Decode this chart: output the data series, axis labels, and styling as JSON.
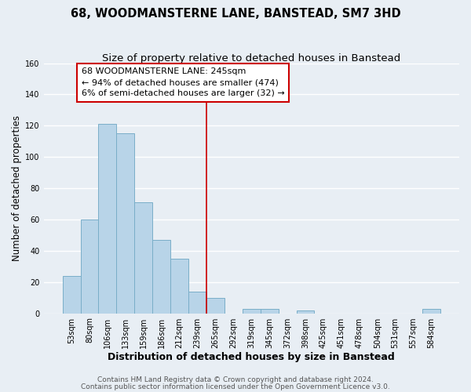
{
  "title": "68, WOODMANSTERNE LANE, BANSTEAD, SM7 3HD",
  "subtitle": "Size of property relative to detached houses in Banstead",
  "xlabel": "Distribution of detached houses by size in Banstead",
  "ylabel": "Number of detached properties",
  "bar_labels": [
    "53sqm",
    "80sqm",
    "106sqm",
    "133sqm",
    "159sqm",
    "186sqm",
    "212sqm",
    "239sqm",
    "265sqm",
    "292sqm",
    "319sqm",
    "345sqm",
    "372sqm",
    "398sqm",
    "425sqm",
    "451sqm",
    "478sqm",
    "504sqm",
    "531sqm",
    "557sqm",
    "584sqm"
  ],
  "bar_heights": [
    24,
    60,
    121,
    115,
    71,
    47,
    35,
    14,
    10,
    0,
    3,
    3,
    0,
    2,
    0,
    0,
    0,
    0,
    0,
    0,
    3
  ],
  "bar_color": "#b8d4e8",
  "bar_edge_color": "#7aaec8",
  "vline_x_index": 7.5,
  "vline_color": "#cc0000",
  "annotation_text": "68 WOODMANSTERNE LANE: 245sqm\n← 94% of detached houses are smaller (474)\n6% of semi-detached houses are larger (32) →",
  "annotation_box_facecolor": "#ffffff",
  "annotation_box_edgecolor": "#cc0000",
  "ylim": [
    0,
    160
  ],
  "yticks": [
    0,
    20,
    40,
    60,
    80,
    100,
    120,
    140,
    160
  ],
  "footer_line1": "Contains HM Land Registry data © Crown copyright and database right 2024.",
  "footer_line2": "Contains public sector information licensed under the Open Government Licence v3.0.",
  "background_color": "#e8eef4",
  "plot_background": "#e8eef4",
  "grid_color": "#ffffff",
  "title_fontsize": 10.5,
  "subtitle_fontsize": 9.5,
  "xlabel_fontsize": 9,
  "ylabel_fontsize": 8.5,
  "tick_fontsize": 7,
  "annotation_fontsize": 8,
  "footer_fontsize": 6.5
}
